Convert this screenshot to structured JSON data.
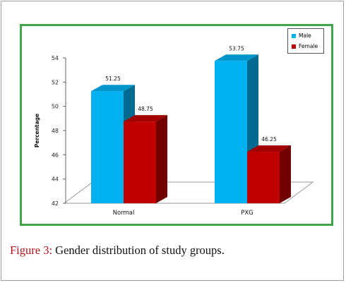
{
  "caption": {
    "label": "Figure 3:",
    "text": " Gender distribution of study groups."
  },
  "chart_data": {
    "type": "bar",
    "style": "3d-clustered",
    "categories": [
      "Normal",
      "PXG"
    ],
    "series": [
      {
        "name": "Male",
        "values": [
          51.25,
          53.75
        ],
        "color": "#00b0f0",
        "label_text": [
          "51.25",
          "53.75"
        ]
      },
      {
        "name": "Female",
        "values": [
          48.75,
          46.25
        ],
        "color": "#c00000",
        "label_text": [
          "48.75",
          "46.25"
        ]
      }
    ],
    "ylabel": "Percentage",
    "xlabel": "",
    "ylim": [
      42,
      54
    ],
    "yticks": [
      "42",
      "44",
      "46",
      "48",
      "50",
      "52",
      "54"
    ],
    "grid": false,
    "legend": "top-right",
    "border_color": "#3fa64b"
  }
}
